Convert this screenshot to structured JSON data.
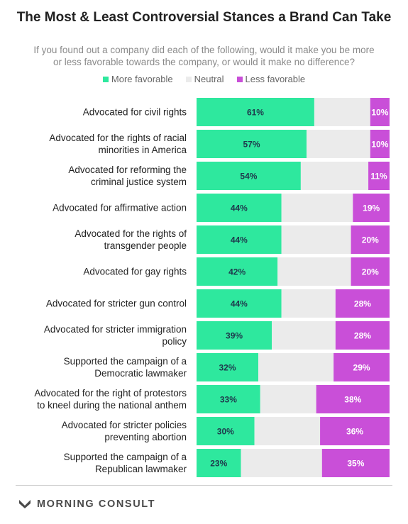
{
  "title": "The Most & Least Controversial Stances a Brand Can Take",
  "subtitle": "If you found out a company did each of the following, would it make you be more or less favorable towards the company, or would it make no difference?",
  "legend": {
    "more": "More favorable",
    "neutral": "Neutral",
    "less": "Less favorable"
  },
  "colors": {
    "more": "#2ee89e",
    "neutral": "#ebebeb",
    "less": "#c94fd8"
  },
  "footer": {
    "brand": "MORNING CONSULT",
    "logo_icon": "morning-consult-chevron-icon"
  },
  "chart_data": {
    "type": "bar",
    "stacked": true,
    "orientation": "horizontal",
    "xlim": [
      0,
      100
    ],
    "categories": [
      [
        "Advocated for civil rights"
      ],
      [
        "Advocated for the rights of racial",
        "minorities in America"
      ],
      [
        "Advocated for reforming the",
        "criminal justice system"
      ],
      [
        "Advocated for affirmative action"
      ],
      [
        "Advocated for the rights of",
        "transgender people"
      ],
      [
        "Advocated for gay rights"
      ],
      [
        "Advocated for stricter gun control"
      ],
      [
        "Advocated for stricter immigration",
        "policy"
      ],
      [
        "Supported the campaign of a",
        "Democratic lawmaker"
      ],
      [
        "Advocated for the right of protestors",
        "to kneel during the national anthem"
      ],
      [
        "Advocated for stricter policies",
        "preventing abortion"
      ],
      [
        "Supported the campaign of a",
        "Republican lawmaker"
      ]
    ],
    "series": [
      {
        "name": "More favorable",
        "values": [
          61,
          57,
          54,
          44,
          44,
          42,
          44,
          39,
          32,
          33,
          30,
          23
        ]
      },
      {
        "name": "Neutral",
        "values": [
          29,
          33,
          35,
          37,
          36,
          38,
          28,
          33,
          39,
          29,
          34,
          42
        ]
      },
      {
        "name": "Less favorable",
        "values": [
          10,
          10,
          11,
          19,
          20,
          20,
          28,
          28,
          29,
          38,
          36,
          35
        ]
      }
    ],
    "value_labels": [
      [
        "61%",
        "10%"
      ],
      [
        "57%",
        "10%"
      ],
      [
        "54%",
        "11%"
      ],
      [
        "44%",
        "19%"
      ],
      [
        "44%",
        "20%"
      ],
      [
        "42%",
        "20%"
      ],
      [
        "44%",
        "28%"
      ],
      [
        "39%",
        "28%"
      ],
      [
        "32%",
        "29%"
      ],
      [
        "33%",
        "38%"
      ],
      [
        "30%",
        "36%"
      ],
      [
        "23%",
        "35%"
      ]
    ]
  }
}
